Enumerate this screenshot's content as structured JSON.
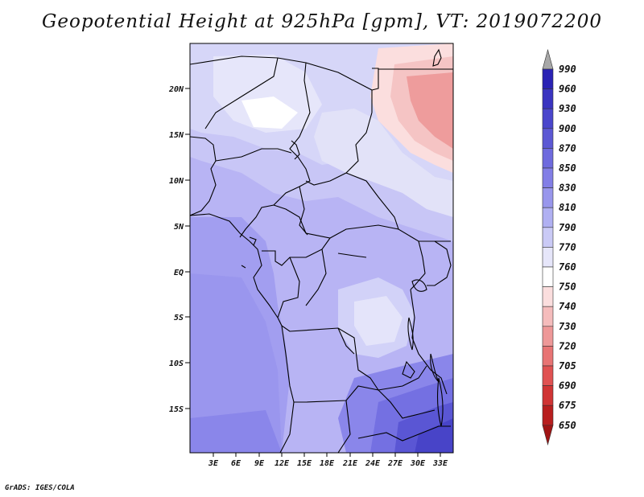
{
  "title": "Geopotential Height at 925hPa [gpm], VT: 2019072200",
  "credit": "GrADS: IGES/COLA",
  "map": {
    "lat_ticks": [
      "20N",
      "15N",
      "10N",
      "5N",
      "EQ",
      "5S",
      "10S",
      "15S"
    ],
    "lon_ticks": [
      "3E",
      "6E",
      "9E",
      "12E",
      "15E",
      "18E",
      "21E",
      "24E",
      "27E",
      "30E",
      "33E"
    ]
  },
  "colorbar": {
    "labels": [
      "990",
      "960",
      "930",
      "900",
      "870",
      "850",
      "830",
      "810",
      "790",
      "770",
      "760",
      "750",
      "740",
      "730",
      "720",
      "705",
      "690",
      "675",
      "650"
    ],
    "colors": [
      "#1a0fa0",
      "#2a22b4",
      "#3a34c0",
      "#4a46cc",
      "#5c58d4",
      "#6e6ade",
      "#827ee6",
      "#9896ec",
      "#b0b0f2",
      "#cacaf6",
      "#e6e6fa",
      "#ffffff",
      "#fbdede",
      "#f5bcbc",
      "#ee9898",
      "#e87474",
      "#e05252",
      "#d03434",
      "#b81e1e",
      "#a01414"
    ]
  }
}
